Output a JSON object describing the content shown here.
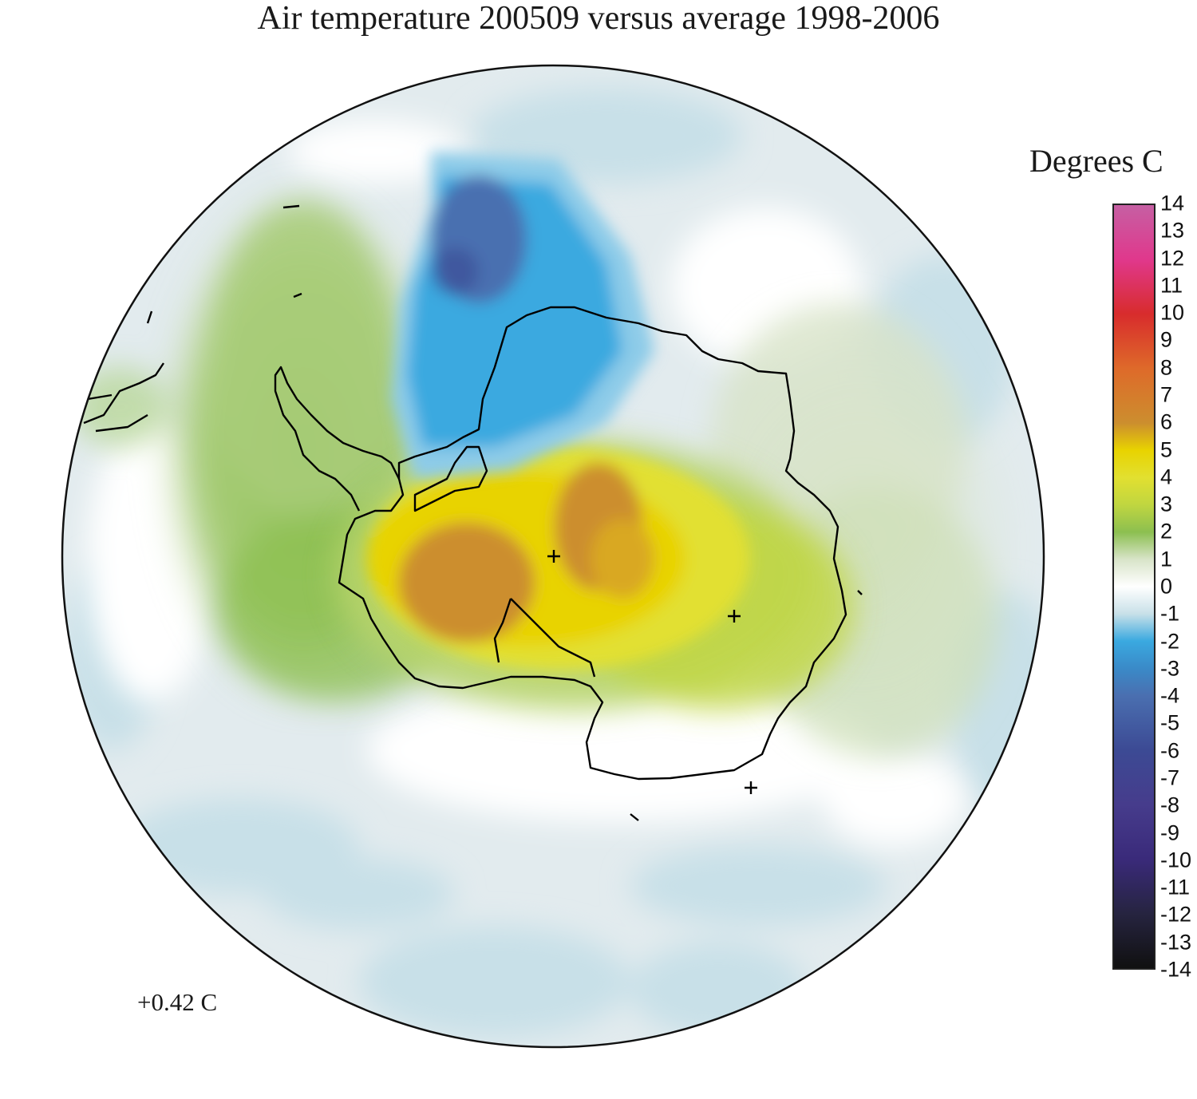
{
  "title": "Air temperature 200509 versus average 1998-2006",
  "legend": {
    "title": "Degrees C",
    "ticks": [
      "14",
      "13",
      "12",
      "11",
      "10",
      "9",
      "8",
      "7",
      "6",
      "5",
      "4",
      "3",
      "2",
      "1",
      "0",
      "-1",
      "-2",
      "-3",
      "-4",
      "-5",
      "-6",
      "-7",
      "-8",
      "-9",
      "-10",
      "-11",
      "-12",
      "-13",
      "-14"
    ],
    "colors": {
      "14": "#c65fa3",
      "12": "#e0388c",
      "10": "#d82c2c",
      "8": "#de6a2a",
      "6": "#cc8e2e",
      "5": "#e8d300",
      "4": "#e2e030",
      "3": "#c0d640",
      "2": "#8cbf50",
      "1": "#d8e4c8",
      "0": "#ffffff",
      "-1": "#c8e0e8",
      "-2": "#3aa9e0",
      "-3": "#3a8ac8",
      "-4": "#4a6fb0",
      "-6": "#3c4a94",
      "-8": "#463c8c",
      "-10": "#3a2a7a",
      "-12": "#262440",
      "-14": "#101010"
    }
  },
  "map_note": "+0.42 C"
}
